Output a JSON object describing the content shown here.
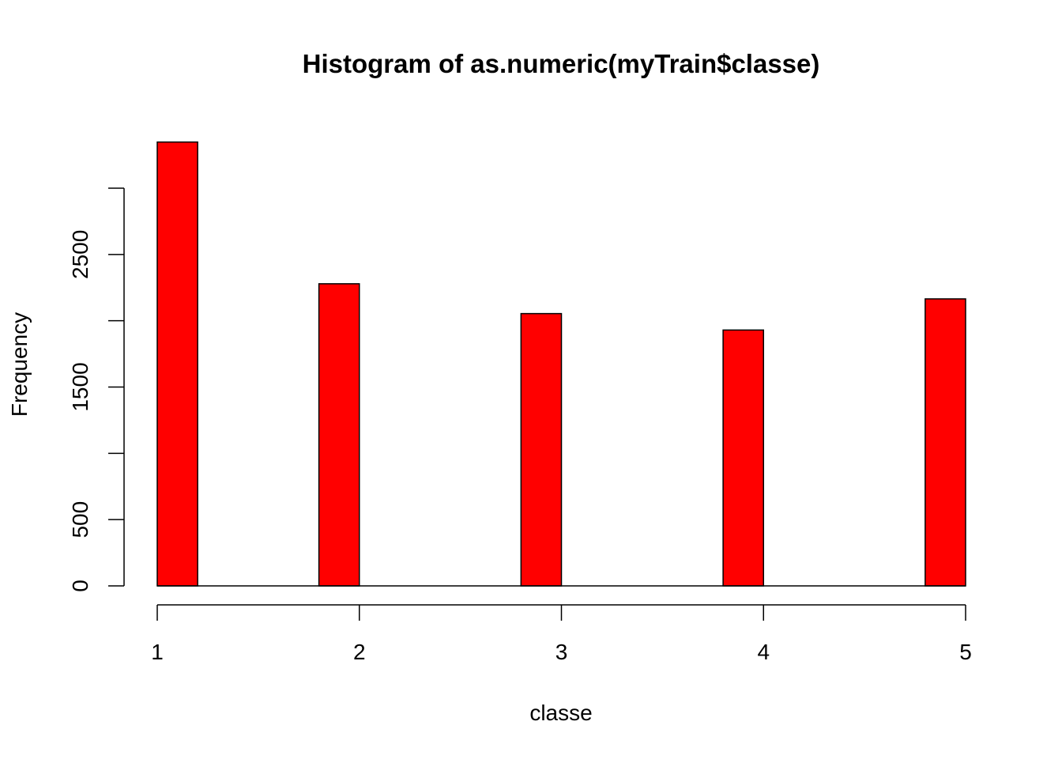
{
  "chart_data": {
    "type": "bar",
    "title": "Histogram of as.numeric(myTrain$classe)",
    "xlabel": "classe",
    "ylabel": "Frequency",
    "categories": [
      1,
      2,
      3,
      4,
      5
    ],
    "values": [
      3348,
      2279,
      2054,
      1930,
      2165
    ],
    "bins": [
      {
        "from": 1.0,
        "to": 1.2,
        "value": 3348
      },
      {
        "from": 1.8,
        "to": 2.0,
        "value": 2279
      },
      {
        "from": 2.8,
        "to": 3.0,
        "value": 2054
      },
      {
        "from": 3.8,
        "to": 4.0,
        "value": 1930
      },
      {
        "from": 4.8,
        "to": 5.0,
        "value": 2165
      }
    ],
    "xlim": [
      1,
      5
    ],
    "ylim": [
      0,
      3348
    ],
    "x_ticks": [
      1,
      2,
      3,
      4,
      5
    ],
    "y_ticks": [
      0,
      500,
      1000,
      1500,
      2000,
      2500,
      3000
    ],
    "y_tick_labels": [
      "0",
      "500",
      "",
      "1500",
      "",
      "2500",
      ""
    ],
    "bar_color": "#ff0000",
    "bar_border_color": "#000000",
    "grid": false,
    "legend": "none"
  }
}
